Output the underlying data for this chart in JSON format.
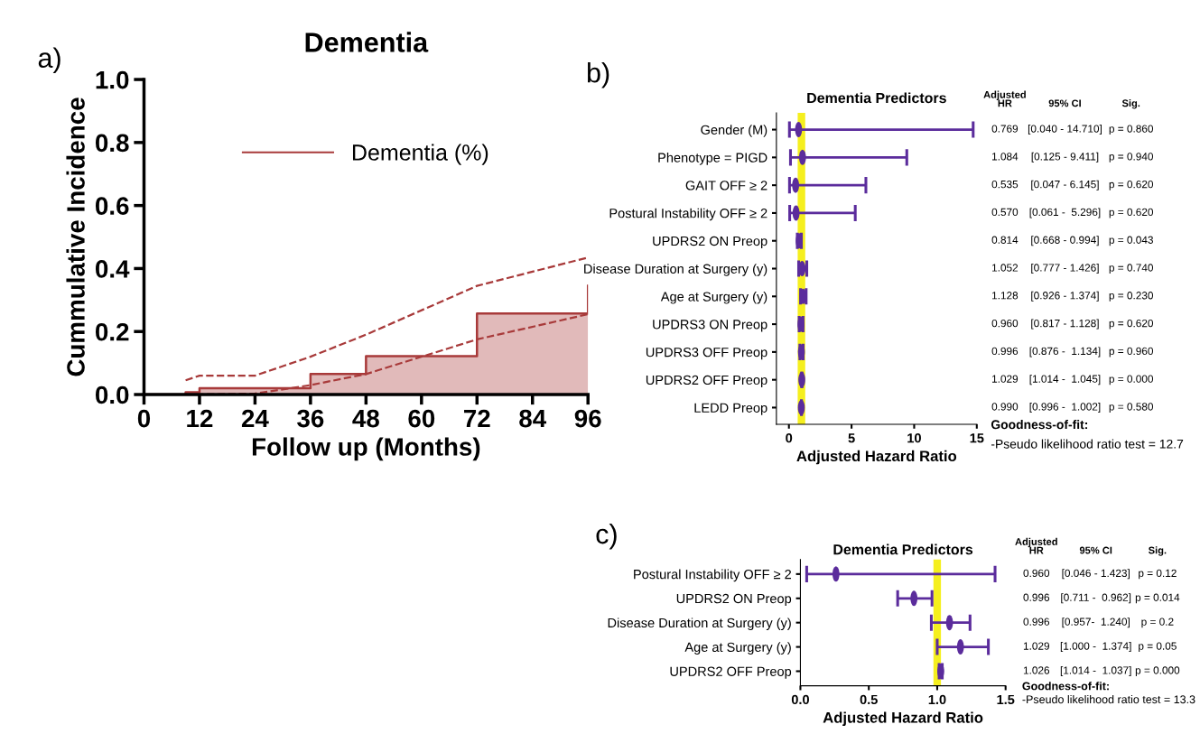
{
  "chart_data": [
    {
      "type": "area",
      "title": "Dementia",
      "xlabel": "Follow up (Months)",
      "ylabel": "Cummulative Incidence",
      "xlim": [
        0,
        96
      ],
      "xticks": [
        0,
        12,
        24,
        36,
        48,
        60,
        72,
        84,
        96
      ],
      "ylim": [
        0,
        1
      ],
      "yticks": [
        {
          "value": 0,
          "label": "0.0"
        },
        {
          "value": 0.2,
          "label": "0.2"
        },
        {
          "value": 0.4,
          "label": "0.4"
        },
        {
          "value": 0.6,
          "label": "0.6"
        },
        {
          "value": 0.8,
          "label": "0.8"
        },
        {
          "value": 1,
          "label": "1.0"
        }
      ],
      "legend": "top",
      "grid": false,
      "annotations": [
        "a)"
      ],
      "series": [
        {
          "name": "Dementia (%)",
          "type": "area",
          "color": "#a83a3a",
          "x": [
            0,
            9,
            9,
            12,
            12,
            36,
            36,
            48,
            48,
            72,
            72,
            96,
            96
          ],
          "values": [
            0,
            0,
            0.007,
            0.007,
            0.02,
            0.02,
            0.065,
            0.065,
            0.122,
            0.122,
            0.257,
            0.257,
            0.345
          ]
        },
        {
          "type": "line",
          "line_style": "dashed",
          "color": "#a83a3a",
          "x": [
            9,
            12,
            24,
            36,
            48,
            72,
            96
          ],
          "values": [
            0.045,
            0.06,
            0.06,
            0.12,
            0.19,
            0.345,
            0.435
          ]
        },
        {
          "type": "line",
          "line_style": "dashed",
          "color": "#a83a3a",
          "x": [
            9,
            24,
            36,
            48,
            72,
            96
          ],
          "values": [
            0.0,
            0.003,
            0.03,
            0.065,
            0.175,
            0.255
          ]
        }
      ]
    },
    {
      "type": "scatter",
      "orientation": "horizontal",
      "title": "Dementia Predictors",
      "xlabel": "Adjusted Hazard Ratio",
      "categories": [
        "Gender (M)",
        "Phenotype = PIGD",
        "GAIT OFF ≥ 2",
        "Postural Instability OFF ≥ 2",
        "UPDRS2 ON Preop",
        "Disease Duration at Surgery (y)",
        "Age at Surgery (y)",
        "UPDRS3 ON Preop",
        "UPDRS3 OFF Preop",
        "UPDRS2 OFF Preop",
        "LEDD Preop"
      ],
      "xlim": [
        -1,
        15
      ],
      "xticks": [
        0,
        5,
        10,
        15
      ],
      "ref_lines": [
        {
          "axis": "x",
          "value": 1,
          "color": "#f5ef1e"
        }
      ],
      "series": [
        {
          "color": "#5b2c9c",
          "values": [
            0.769,
            1.084,
            0.535,
            0.57,
            0.814,
            1.052,
            1.128,
            0.96,
            0.996,
            1.029,
            0.99
          ],
          "errors": [
            [
              0.04,
              14.71
            ],
            [
              0.125,
              9.411
            ],
            [
              0.047,
              6.145
            ],
            [
              0.061,
              5.296
            ],
            [
              0.668,
              0.994
            ],
            [
              0.777,
              1.426
            ],
            [
              0.926,
              1.374
            ],
            [
              0.817,
              1.128
            ],
            [
              0.876,
              1.134
            ],
            [
              1.014,
              1.045
            ],
            [
              0.996,
              1.002
            ]
          ]
        }
      ],
      "annotations": [
        "b)",
        "Adjusted\nHR",
        "95% CI",
        "Sig.",
        "0.769",
        "[0.040 - 14.710]",
        "p = 0.860",
        "1.084",
        "[0.125 - 9.411]",
        "p = 0.940",
        "0.535",
        "[0.047 - 6.145]",
        "p = 0.620",
        "0.570",
        "[0.061 -  5.296]",
        "p = 0.620",
        "0.814",
        "[0.668 - 0.994]",
        "p = 0.043",
        "1.052",
        "[0.777 - 1.426]",
        "p = 0.740",
        "1.128",
        "[0.926 - 1.374]",
        "p = 0.230",
        "0.960",
        "[0.817 - 1.128]",
        "p = 0.620",
        "0.996",
        "[0.876 -  1.134]",
        "p = 0.960",
        "1.029",
        "[1.014 -  1.045]",
        "p = 0.000",
        "0.990",
        "[0.996 -  1.002]",
        "p = 0.580",
        "Goodness-of-fit:",
        "-Pseudo likelihood ratio test = 12.7"
      ]
    },
    {
      "type": "scatter",
      "orientation": "horizontal",
      "title": "Dementia Predictors",
      "xlabel": "Adjusted Hazard Ratio",
      "categories": [
        "Postural Instability OFF ≥ 2",
        "UPDRS2 ON Preop",
        "Disease Duration at Surgery (y)",
        "Age at Surgery (y)",
        "UPDRS2 OFF Preop"
      ],
      "xlim": [
        0,
        1.5
      ],
      "xticks": [
        {
          "value": 0,
          "label": "0.0"
        },
        {
          "value": 0.5,
          "label": "0.5"
        },
        {
          "value": 1,
          "label": "1.0"
        },
        {
          "value": 1.5,
          "label": "1.5"
        }
      ],
      "ref_lines": [
        {
          "axis": "x",
          "value": 1,
          "color": "#f5ef1e"
        }
      ],
      "series": [
        {
          "color": "#5b2c9c",
          "values": [
            0.26,
            0.83,
            1.09,
            1.17,
            1.026
          ],
          "errors": [
            [
              0.046,
              1.423
            ],
            [
              0.711,
              0.962
            ],
            [
              0.957,
              1.24
            ],
            [
              1.0,
              1.374
            ],
            [
              1.014,
              1.037
            ]
          ]
        }
      ],
      "annotations": [
        "c)",
        "Adjusted\nHR",
        "95% CI",
        "Sig.",
        "0.960",
        "[0.046 - 1.423]",
        "p = 0.12",
        "0.996",
        "[0.711 -  0.962]",
        "p = 0.014",
        "0.996",
        "[0.957-  1.240]",
        "p = 0.2",
        "1.029",
        "[1.000 -  1.374]",
        "p = 0.05",
        "1.026",
        "[1.014 -  1.037]",
        "p = 0.000",
        "Goodness-of-fit:",
        "-Pseudo likelihood ratio test = 13.3"
      ]
    }
  ]
}
